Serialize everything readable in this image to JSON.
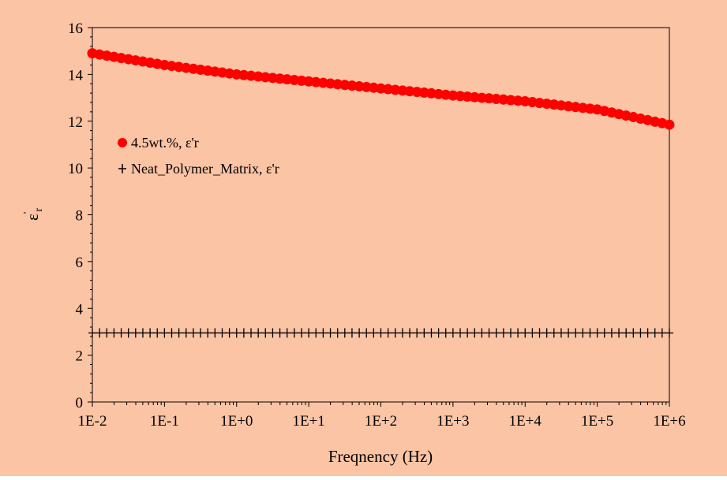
{
  "colors": {
    "background": "#FBC4A4",
    "series1": "#FF0000",
    "series2": "#000000"
  },
  "chart_data": {
    "type": "scatter",
    "x_scale": "log",
    "xlabel": "Freqnency (Hz)",
    "ylabel_main": "ε",
    "ylabel_sup": "'",
    "ylabel_sub": "r",
    "xlim": [
      0.01,
      1000000
    ],
    "ylim": [
      0,
      16
    ],
    "x_tick_labels": [
      "1E-2",
      "1E-1",
      "1E+0",
      "1E+1",
      "1E+2",
      "1E+3",
      "1E+4",
      "1E+5",
      "1E+6"
    ],
    "y_tick_labels": [
      "0",
      "2",
      "4",
      "6",
      "8",
      "10",
      "12",
      "14",
      "16"
    ],
    "grid": false,
    "legend_position": "left-center",
    "series": [
      {
        "name": "4.5wt.%, ε'r",
        "marker": "circle",
        "color": "#FF0000",
        "x_start_log10": -2,
        "x_end_log10": 6,
        "points_per_decade": 10,
        "anchors": [
          {
            "x": 0.01,
            "y": 14.9
          },
          {
            "x": 0.1,
            "y": 14.4
          },
          {
            "x": 1,
            "y": 14.0
          },
          {
            "x": 10,
            "y": 13.7
          },
          {
            "x": 100,
            "y": 13.4
          },
          {
            "x": 1000,
            "y": 13.1
          },
          {
            "x": 10000,
            "y": 12.85
          },
          {
            "x": 100000,
            "y": 12.5
          },
          {
            "x": 1000000,
            "y": 11.85
          }
        ]
      },
      {
        "name": "Neat_Polymer_Matrix, ε'r",
        "marker": "plus",
        "color": "#000000",
        "x_start_log10": -2,
        "x_end_log10": 6,
        "points_per_decade": 10,
        "anchors": [
          {
            "x": 0.01,
            "y": 2.95
          },
          {
            "x": 1000000,
            "y": 2.95
          }
        ]
      }
    ]
  }
}
